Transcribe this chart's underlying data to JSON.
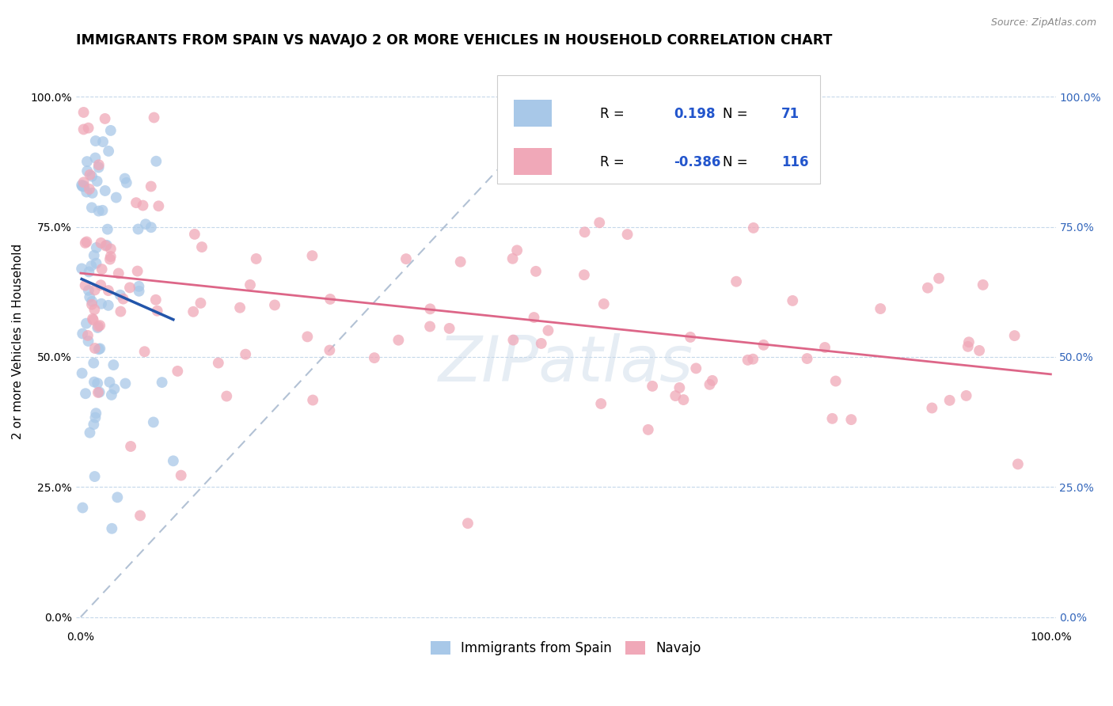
{
  "title": "IMMIGRANTS FROM SPAIN VS NAVAJO 2 OR MORE VEHICLES IN HOUSEHOLD CORRELATION CHART",
  "source": "Source: ZipAtlas.com",
  "ylabel": "2 or more Vehicles in Household",
  "ytick_labels": [
    "0.0%",
    "25.0%",
    "50.0%",
    "75.0%",
    "100.0%"
  ],
  "ytick_values": [
    0.0,
    0.25,
    0.5,
    0.75,
    1.0
  ],
  "legend_label1": "Immigrants from Spain",
  "legend_label2": "Navajo",
  "R1": 0.198,
  "N1": 71,
  "R2": -0.386,
  "N2": 116,
  "blue_color": "#a8c8e8",
  "pink_color": "#f0a8b8",
  "blue_line_color": "#2255aa",
  "pink_line_color": "#dd6688",
  "dash_line_color": "#aabbd0",
  "title_fontsize": 12.5,
  "axis_label_fontsize": 11,
  "tick_label_fontsize": 10,
  "legend_fontsize": 12,
  "watermark_text": "ZIPatlas"
}
